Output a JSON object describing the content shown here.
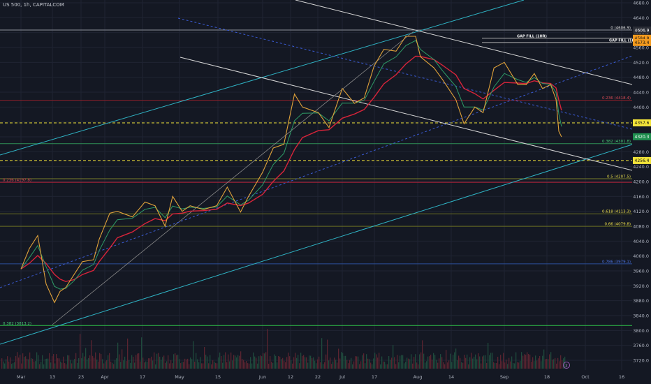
{
  "header": {
    "title": "US 500, 1h, CAPITALCOM"
  },
  "colors": {
    "background": "#141823",
    "grid": "#1f2433",
    "axis_text": "#aeb3bf",
    "price_line": "#e0a23a",
    "ema_fast": "#2e9c67",
    "ema_slow": "#d8243a",
    "channel": "#2fb3c4",
    "white_line": "#d6d6d6",
    "blue_dash": "#3b5cd6",
    "yellow_dash": "#f3e43a"
  },
  "chart_data": {
    "type": "line",
    "title": "US 500, 1h, CAPITALCOM",
    "ylim": [
      3700,
      4680
    ],
    "x_ticks": [
      "Mar",
      "13",
      "23",
      "Apr",
      "17",
      "May",
      "15",
      "Jun",
      "12",
      "22",
      "Jul",
      "17",
      "Aug",
      "14",
      "Sep",
      "18",
      "Oct",
      "16"
    ],
    "y_ticks": [
      "4680.0",
      "4640.0",
      "4600.0",
      "4560.0",
      "4520.0",
      "4480.0",
      "4440.0",
      "4400.0",
      "4360.0",
      "4320.0",
      "4280.0",
      "4240.0",
      "4200.0",
      "4160.0",
      "4120.0",
      "4080.0",
      "4040.0",
      "4000.0",
      "3960.0",
      "3920.0",
      "3880.0",
      "3840.0",
      "3800.0",
      "3760.0",
      "3720.0"
    ],
    "series": [
      {
        "values": [
          {
            "x": "Mar 1",
            "y": 3965
          },
          {
            "x": "Mar 4",
            "y": 4020
          },
          {
            "x": "Mar 7",
            "y": 4055
          },
          {
            "x": "Mar 10",
            "y": 3925
          },
          {
            "x": "Mar 13",
            "y": 3875
          },
          {
            "x": "Mar 15",
            "y": 3905
          },
          {
            "x": "Mar 17",
            "y": 3915
          },
          {
            "x": "Mar 20",
            "y": 3950
          },
          {
            "x": "Mar 23",
            "y": 3985
          },
          {
            "x": "Mar 27",
            "y": 3990
          },
          {
            "x": "Mar 29",
            "y": 4045
          },
          {
            "x": "Apr 3",
            "y": 4115
          },
          {
            "x": "Apr 6",
            "y": 4120
          },
          {
            "x": "Apr 12",
            "y": 4105
          },
          {
            "x": "Apr 17",
            "y": 4145
          },
          {
            "x": "Apr 21",
            "y": 4135
          },
          {
            "x": "Apr 25",
            "y": 4080
          },
          {
            "x": "Apr 28",
            "y": 4160
          },
          {
            "x": "May 2",
            "y": 4120
          },
          {
            "x": "May 5",
            "y": 4135
          },
          {
            "x": "May 10",
            "y": 4125
          },
          {
            "x": "May 15",
            "y": 4135
          },
          {
            "x": "May 19",
            "y": 4185
          },
          {
            "x": "May 24",
            "y": 4118
          },
          {
            "x": "May 27",
            "y": 4160
          },
          {
            "x": "Jun 1",
            "y": 4225
          },
          {
            "x": "Jun 5",
            "y": 4290
          },
          {
            "x": "Jun 9",
            "y": 4300
          },
          {
            "x": "Jun 13",
            "y": 4435
          },
          {
            "x": "Jun 16",
            "y": 4400
          },
          {
            "x": "Jun 22",
            "y": 4385
          },
          {
            "x": "Jun 26",
            "y": 4345
          },
          {
            "x": "Jul 1",
            "y": 4450
          },
          {
            "x": "Jul 6",
            "y": 4410
          },
          {
            "x": "Jul 10",
            "y": 4425
          },
          {
            "x": "Jul 14",
            "y": 4510
          },
          {
            "x": "Jul 18",
            "y": 4555
          },
          {
            "x": "Jul 23",
            "y": 4550
          },
          {
            "x": "Jul 27",
            "y": 4590
          },
          {
            "x": "Jul 31",
            "y": 4590
          },
          {
            "x": "Aug 2",
            "y": 4535
          },
          {
            "x": "Aug 7",
            "y": 4505
          },
          {
            "x": "Aug 10",
            "y": 4475
          },
          {
            "x": "Aug 15",
            "y": 4420
          },
          {
            "x": "Aug 18",
            "y": 4355
          },
          {
            "x": "Aug 22",
            "y": 4400
          },
          {
            "x": "Aug 25",
            "y": 4385
          },
          {
            "x": "Aug 29",
            "y": 4505
          },
          {
            "x": "Sep 1",
            "y": 4520
          },
          {
            "x": "Sep 6",
            "y": 4460
          },
          {
            "x": "Sep 9",
            "y": 4460
          },
          {
            "x": "Sep 12",
            "y": 4490
          },
          {
            "x": "Sep 15",
            "y": 4450
          },
          {
            "x": "Sep 18",
            "y": 4460
          },
          {
            "x": "Sep 20",
            "y": 4420
          },
          {
            "x": "Sep 21",
            "y": 4335
          },
          {
            "x": "Sep 22",
            "y": 4320
          }
        ]
      }
    ],
    "price_labels": [
      {
        "text": "4606.9",
        "value": 4606.9
      },
      {
        "text": "4584.8",
        "value": 4584.8
      },
      {
        "text": "4573.4",
        "value": 4573.4
      },
      {
        "text": "4357.6",
        "value": 4357.6
      },
      {
        "text": "4320.3",
        "value": 4320.3
      },
      {
        "text": "4256.4",
        "value": 4256.4
      }
    ],
    "fib_labels": [
      {
        "text": "0 (4606.9)",
        "value": 4606.9
      },
      {
        "text": "GAP FILL (1HR)",
        "value": 4584.8
      },
      {
        "text": "GAP FILL (1HR)",
        "value": 4573.4
      },
      {
        "text": "0.236 (4418.4)",
        "value": 4418.4
      },
      {
        "text": "0.382 (4301.8)",
        "value": 4301.8
      },
      {
        "text": "0.5 (4207.5)",
        "value": 4207.5
      },
      {
        "text": "0.618 (4113.3)",
        "value": 4113.3
      },
      {
        "text": "0.66 (4079.8)",
        "value": 4079.8
      },
      {
        "text": "0.786 (3979.1)",
        "value": 3979.1
      },
      {
        "text": "0.382 (3813.2)",
        "value": 3813.2
      },
      {
        "text": "0.236 (4197.8)",
        "value": 4197.8
      }
    ],
    "overlay_values": [
      "2"
    ]
  }
}
